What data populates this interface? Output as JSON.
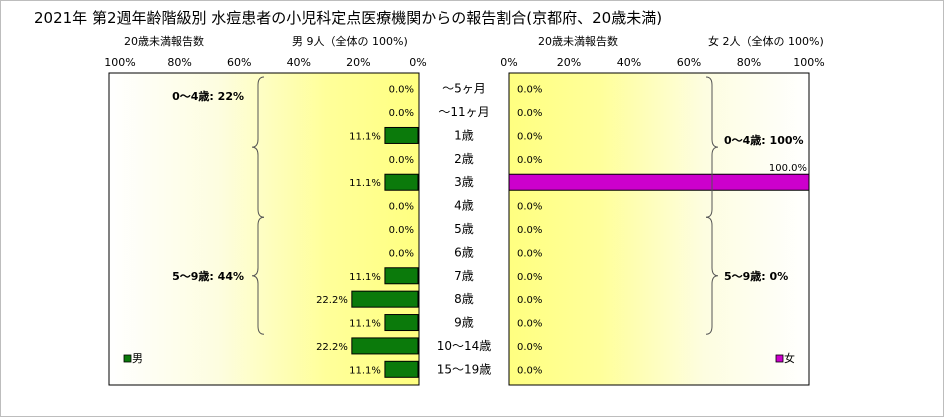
{
  "title": "2021年 第2週年齢階級別 水痘患者の小児科定点医療機関からの報告割合(京都府、20歳未満)",
  "chart_data": [
    {
      "type": "bar",
      "orientation": "horizontal-reversed",
      "panel": "male",
      "axis_caption": "20歳未満報告数",
      "header": "男 9人（全体の 100%)",
      "xlim": [
        0,
        100
      ],
      "tick_labels": [
        "100%",
        "80%",
        "60%",
        "40%",
        "20%",
        "0%"
      ],
      "legend": "男",
      "color": "#0b7a0b",
      "categories": [
        "～5ヶ月",
        "～11ヶ月",
        "1歳",
        "2歳",
        "3歳",
        "4歳",
        "5歳",
        "6歳",
        "7歳",
        "8歳",
        "9歳",
        "10～14歳",
        "15～19歳"
      ],
      "values": [
        0.0,
        0.0,
        11.1,
        0.0,
        11.1,
        0.0,
        0.0,
        0.0,
        11.1,
        22.2,
        11.1,
        22.2,
        11.1
      ],
      "data_labels": [
        "0.0%",
        "0.0%",
        "11.1%",
        "0.0%",
        "11.1%",
        "0.0%",
        "0.0%",
        "0.0%",
        "11.1%",
        "22.2%",
        "11.1%",
        "22.2%",
        "11.1%"
      ],
      "group_labels": [
        "0～4歳: 22%",
        "5～9歳: 44%"
      ]
    },
    {
      "type": "bar",
      "orientation": "horizontal",
      "panel": "female",
      "axis_caption": "20歳未満報告数",
      "header": "女 2人（全体の 100%)",
      "xlim": [
        0,
        100
      ],
      "tick_labels": [
        "0%",
        "20%",
        "40%",
        "60%",
        "80%",
        "100%"
      ],
      "legend": "女",
      "color": "#cc00cc",
      "categories": [
        "～5ヶ月",
        "～11ヶ月",
        "1歳",
        "2歳",
        "3歳",
        "4歳",
        "5歳",
        "6歳",
        "7歳",
        "8歳",
        "9歳",
        "10～14歳",
        "15～19歳"
      ],
      "values": [
        0.0,
        0.0,
        0.0,
        0.0,
        100.0,
        0.0,
        0.0,
        0.0,
        0.0,
        0.0,
        0.0,
        0.0,
        0.0
      ],
      "data_labels": [
        "0.0%",
        "0.0%",
        "0.0%",
        "0.0%",
        "100.0%",
        "0.0%",
        "0.0%",
        "0.0%",
        "0.0%",
        "0.0%",
        "0.0%",
        "0.0%",
        "0.0%"
      ],
      "group_labels": [
        "0～4歳: 100%",
        "5～9歳: 0%"
      ]
    }
  ]
}
